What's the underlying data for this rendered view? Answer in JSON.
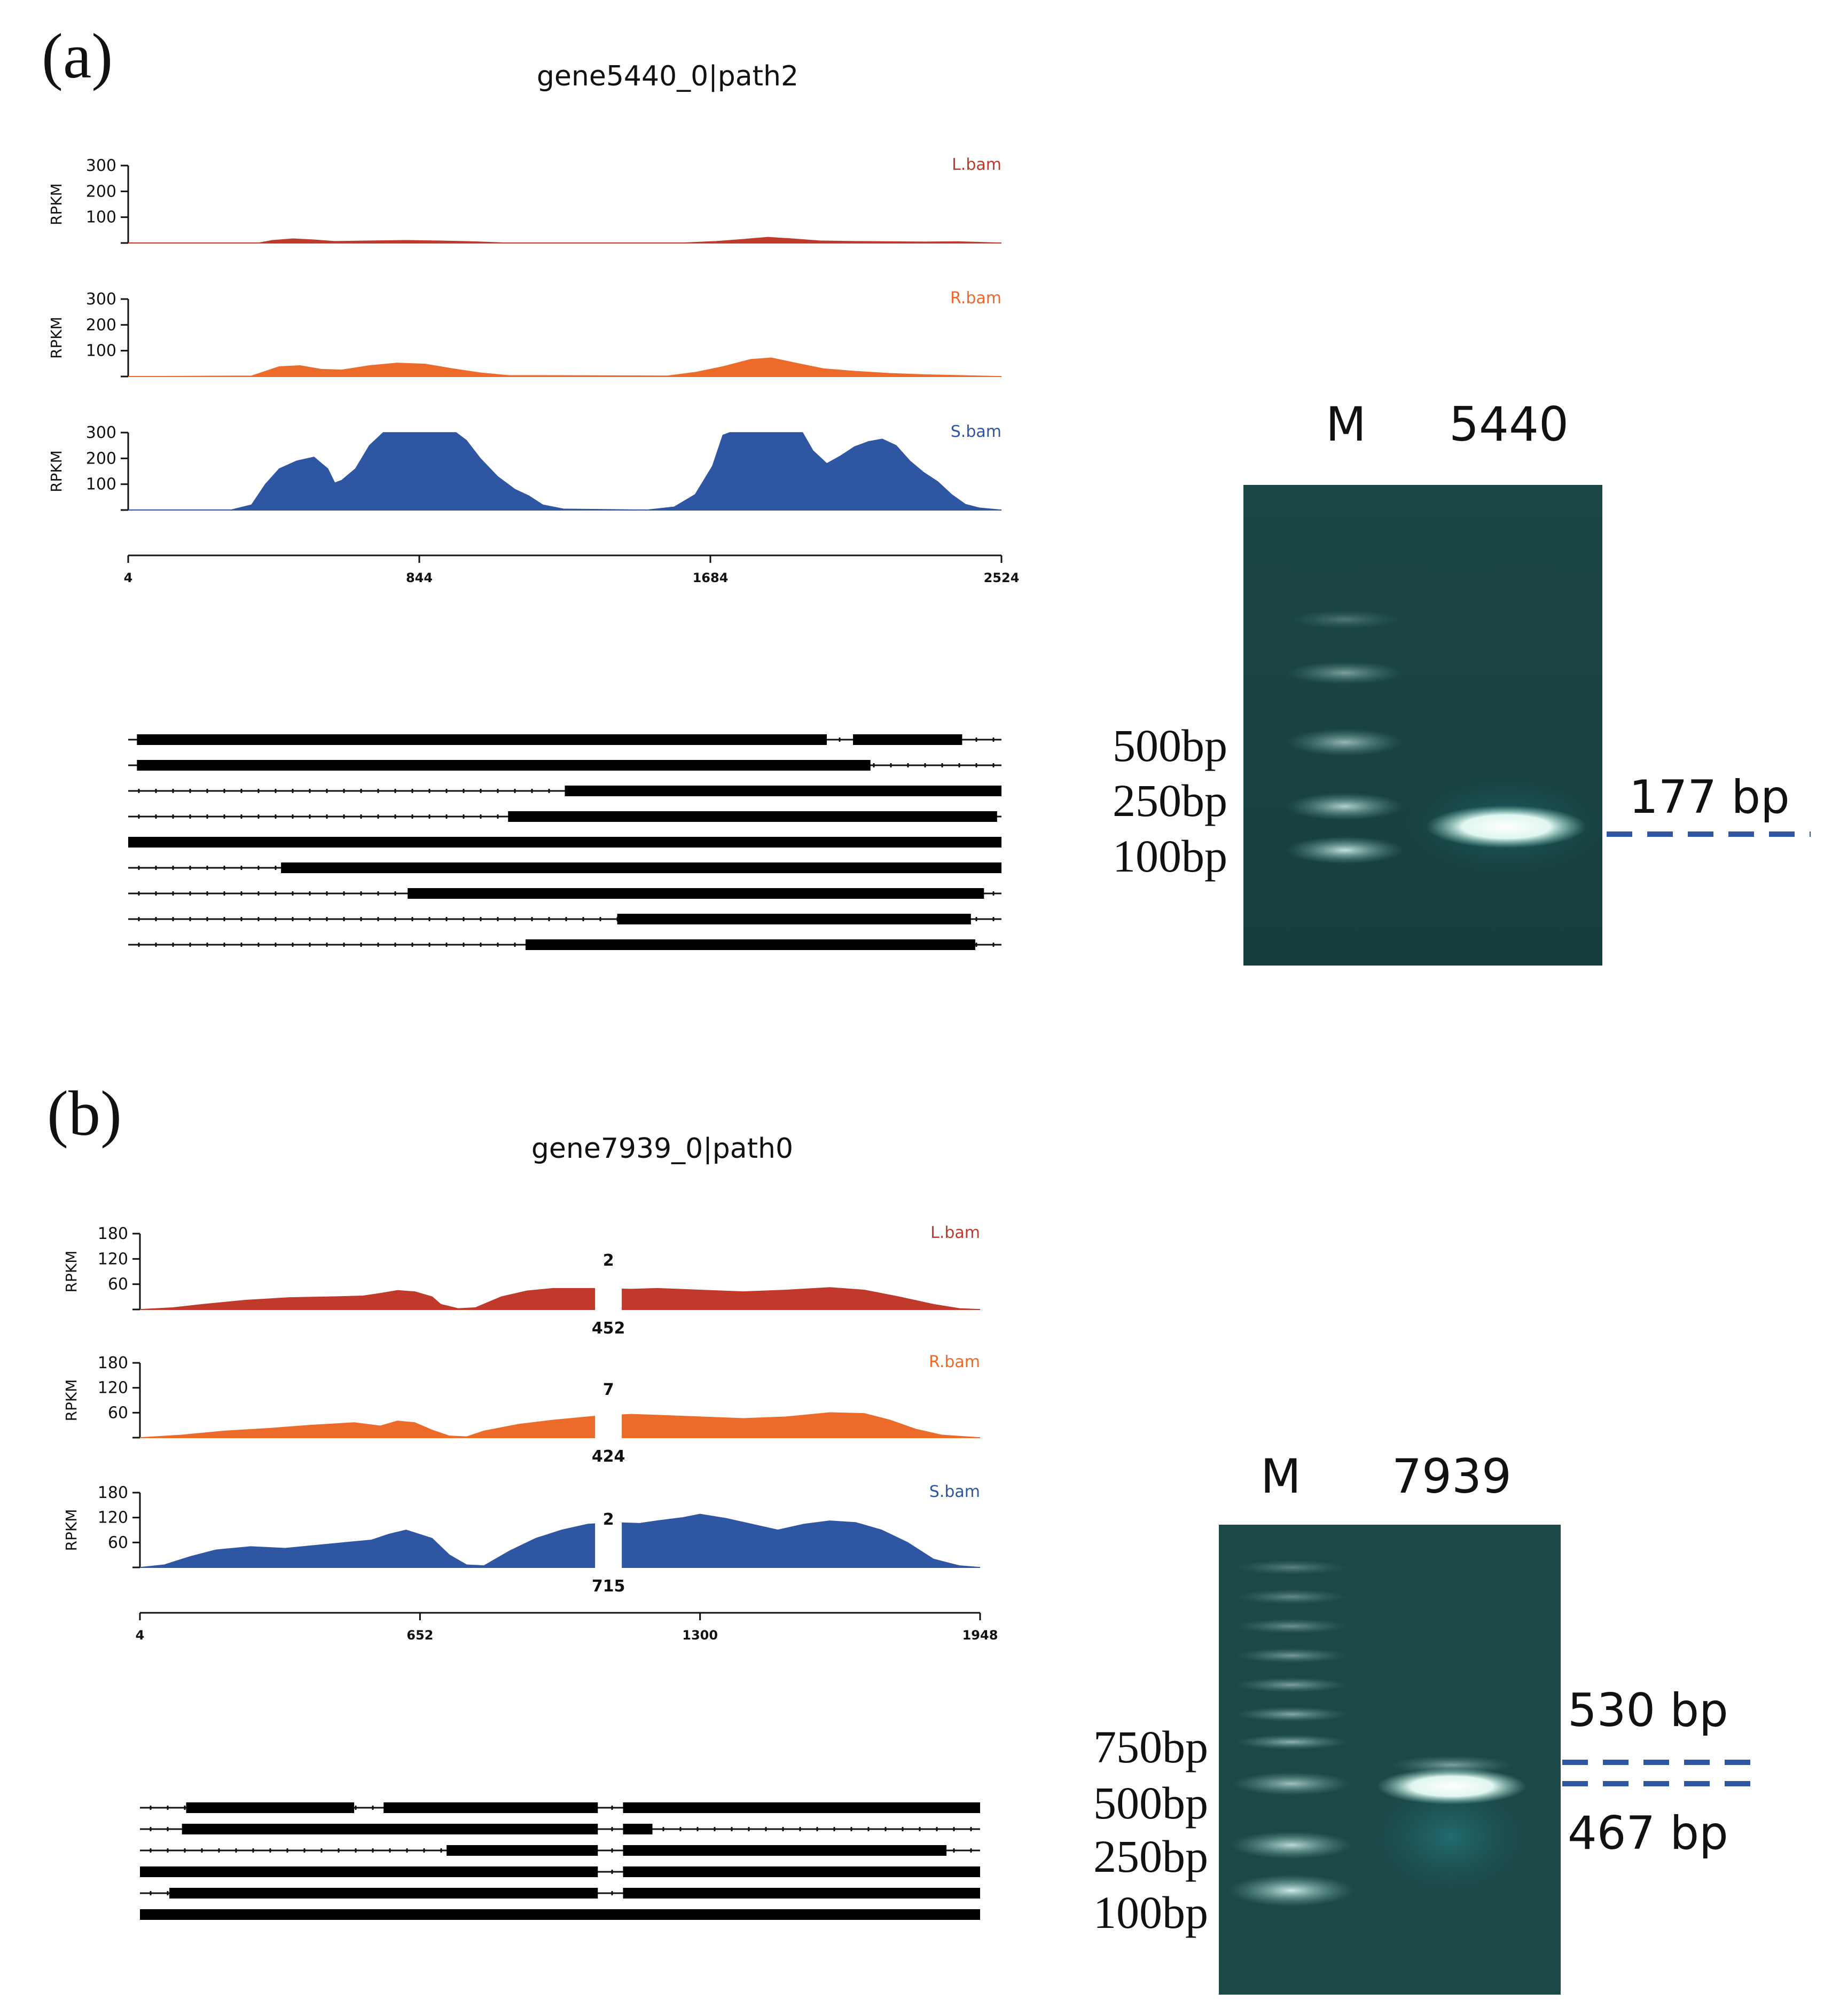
{
  "colors": {
    "L": "#c0392b",
    "R": "#ec6a2a",
    "S": "#2f56a3",
    "dash": "#2f56a3",
    "gel": "#143c3c"
  },
  "panels": [
    {
      "letter": "(a)",
      "title": "gene5440_0|path2",
      "ylabel": "RPKM",
      "x_ticks": [
        "4",
        "844",
        "1684",
        "2524"
      ],
      "x_range": [
        4,
        2524
      ],
      "tracks": [
        {
          "label": "L.bam",
          "color_key": "L",
          "y_max": 300,
          "y_ticks": [
            "300",
            "200",
            "100"
          ],
          "profile": [
            [
              4,
              0
            ],
            [
              380,
              0
            ],
            [
              420,
              10
            ],
            [
              480,
              16
            ],
            [
              540,
              12
            ],
            [
              600,
              6
            ],
            [
              700,
              8
            ],
            [
              800,
              10
            ],
            [
              900,
              8
            ],
            [
              1000,
              5
            ],
            [
              1100,
              0
            ],
            [
              1600,
              0
            ],
            [
              1700,
              6
            ],
            [
              1780,
              14
            ],
            [
              1850,
              22
            ],
            [
              1920,
              16
            ],
            [
              2000,
              8
            ],
            [
              2100,
              6
            ],
            [
              2200,
              5
            ],
            [
              2300,
              4
            ],
            [
              2400,
              5
            ],
            [
              2524,
              0
            ]
          ]
        },
        {
          "label": "R.bam",
          "color_key": "R",
          "y_max": 300,
          "y_ticks": [
            "300",
            "200",
            "100"
          ],
          "profile": [
            [
              4,
              0
            ],
            [
              360,
              2
            ],
            [
              400,
              20
            ],
            [
              440,
              38
            ],
            [
              500,
              42
            ],
            [
              560,
              28
            ],
            [
              620,
              25
            ],
            [
              700,
              42
            ],
            [
              780,
              52
            ],
            [
              860,
              48
            ],
            [
              940,
              30
            ],
            [
              1020,
              14
            ],
            [
              1100,
              4
            ],
            [
              1560,
              2
            ],
            [
              1640,
              16
            ],
            [
              1720,
              38
            ],
            [
              1800,
              66
            ],
            [
              1860,
              72
            ],
            [
              1930,
              52
            ],
            [
              2010,
              30
            ],
            [
              2100,
              20
            ],
            [
              2200,
              12
            ],
            [
              2300,
              7
            ],
            [
              2400,
              4
            ],
            [
              2524,
              0
            ]
          ]
        },
        {
          "label": "S.bam",
          "color_key": "S",
          "y_max": 300,
          "y_ticks": [
            "300",
            "200",
            "100"
          ],
          "profile": [
            [
              4,
              0
            ],
            [
              300,
              0
            ],
            [
              360,
              20
            ],
            [
              400,
              100
            ],
            [
              440,
              160
            ],
            [
              490,
              190
            ],
            [
              540,
              205
            ],
            [
              580,
              160
            ],
            [
              600,
              105
            ],
            [
              620,
              115
            ],
            [
              660,
              160
            ],
            [
              700,
              250
            ],
            [
              740,
              300
            ],
            [
              840,
              300
            ],
            [
              950,
              300
            ],
            [
              980,
              270
            ],
            [
              1020,
              200
            ],
            [
              1070,
              130
            ],
            [
              1120,
              80
            ],
            [
              1160,
              55
            ],
            [
              1200,
              20
            ],
            [
              1260,
              4
            ],
            [
              1500,
              0
            ],
            [
              1580,
              12
            ],
            [
              1640,
              60
            ],
            [
              1690,
              170
            ],
            [
              1720,
              290
            ],
            [
              1740,
              300
            ],
            [
              1950,
              300
            ],
            [
              1980,
              230
            ],
            [
              2020,
              180
            ],
            [
              2060,
              210
            ],
            [
              2100,
              245
            ],
            [
              2140,
              265
            ],
            [
              2180,
              275
            ],
            [
              2220,
              250
            ],
            [
              2260,
              190
            ],
            [
              2300,
              145
            ],
            [
              2340,
              110
            ],
            [
              2380,
              60
            ],
            [
              2420,
              22
            ],
            [
              2460,
              8
            ],
            [
              2524,
              0
            ]
          ]
        }
      ],
      "transcripts": [
        {
          "exons": [
            [
              0.01,
              0.8
            ],
            [
              0.83,
              0.955
            ]
          ],
          "line": [
            0.0,
            1.0
          ]
        },
        {
          "exons": [
            [
              0.01,
              0.85
            ]
          ],
          "line": [
            0.0,
            1.0
          ]
        },
        {
          "exons": [
            [
              0.5,
              1.0
            ]
          ],
          "line": [
            0.0,
            1.0
          ]
        },
        {
          "exons": [
            [
              0.435,
              0.995
            ]
          ],
          "line": [
            0.0,
            1.0
          ]
        },
        {
          "exons": [
            [
              0.0,
              1.0
            ]
          ],
          "line": [
            0.0,
            1.0
          ]
        },
        {
          "exons": [
            [
              0.175,
              1.0
            ]
          ],
          "line": [
            0.0,
            1.0
          ]
        },
        {
          "exons": [
            [
              0.32,
              0.98
            ]
          ],
          "line": [
            0.0,
            1.0
          ]
        },
        {
          "exons": [
            [
              0.56,
              0.965
            ]
          ],
          "line": [
            0.0,
            1.0
          ]
        },
        {
          "exons": [
            [
              0.455,
              0.97
            ]
          ],
          "line": [
            0.0,
            1.0
          ]
        }
      ],
      "gel": {
        "lane_labels": [
          "M",
          "5440"
        ],
        "marker_sizes": [
          "500bp",
          "250bp",
          "100bp"
        ],
        "band_labels": [
          "177 bp"
        ]
      }
    },
    {
      "letter": "(b)",
      "title": "gene7939_0|path0",
      "ylabel": "RPKM",
      "x_ticks": [
        "4",
        "652",
        "1300",
        "1948"
      ],
      "x_range": [
        4,
        1948
      ],
      "tracks": [
        {
          "label": "L.bam",
          "color_key": "L",
          "y_max": 180,
          "y_ticks": [
            "180",
            "120",
            "60"
          ],
          "junction_top": "2",
          "junction_bottom": "452",
          "profile": [
            [
              4,
              0
            ],
            [
              80,
              4
            ],
            [
              150,
              12
            ],
            [
              250,
              22
            ],
            [
              350,
              28
            ],
            [
              450,
              30
            ],
            [
              520,
              32
            ],
            [
              560,
              38
            ],
            [
              600,
              45
            ],
            [
              640,
              42
            ],
            [
              680,
              30
            ],
            [
              700,
              12
            ],
            [
              740,
              2
            ],
            [
              780,
              4
            ],
            [
              840,
              30
            ],
            [
              900,
              44
            ],
            [
              960,
              50
            ],
            [
              1060,
              50
            ],
            [
              1140,
              48
            ],
            [
              1200,
              50
            ],
            [
              1300,
              46
            ],
            [
              1400,
              42
            ],
            [
              1500,
              46
            ],
            [
              1600,
              52
            ],
            [
              1680,
              46
            ],
            [
              1760,
              30
            ],
            [
              1840,
              12
            ],
            [
              1900,
              2
            ],
            [
              1948,
              0
            ]
          ]
        },
        {
          "label": "R.bam",
          "color_key": "R",
          "y_max": 180,
          "y_ticks": [
            "180",
            "120",
            "60"
          ],
          "junction_top": "7",
          "junction_bottom": "424",
          "profile": [
            [
              4,
              0
            ],
            [
              100,
              6
            ],
            [
              200,
              16
            ],
            [
              300,
              22
            ],
            [
              400,
              30
            ],
            [
              500,
              36
            ],
            [
              560,
              28
            ],
            [
              600,
              40
            ],
            [
              640,
              36
            ],
            [
              680,
              18
            ],
            [
              720,
              4
            ],
            [
              760,
              2
            ],
            [
              800,
              16
            ],
            [
              880,
              32
            ],
            [
              960,
              42
            ],
            [
              1060,
              52
            ],
            [
              1140,
              56
            ],
            [
              1200,
              54
            ],
            [
              1300,
              50
            ],
            [
              1400,
              46
            ],
            [
              1500,
              50
            ],
            [
              1600,
              60
            ],
            [
              1680,
              58
            ],
            [
              1740,
              42
            ],
            [
              1800,
              20
            ],
            [
              1860,
              6
            ],
            [
              1948,
              0
            ]
          ]
        },
        {
          "label": "S.bam",
          "color_key": "S",
          "y_max": 180,
          "y_ticks": [
            "180",
            "120",
            "60"
          ],
          "junction_top": "2",
          "junction_bottom": "715",
          "profile": [
            [
              4,
              0
            ],
            [
              60,
              6
            ],
            [
              120,
              26
            ],
            [
              180,
              42
            ],
            [
              260,
              50
            ],
            [
              340,
              46
            ],
            [
              420,
              54
            ],
            [
              480,
              60
            ],
            [
              540,
              66
            ],
            [
              580,
              80
            ],
            [
              620,
              90
            ],
            [
              680,
              70
            ],
            [
              720,
              30
            ],
            [
              760,
              6
            ],
            [
              800,
              4
            ],
            [
              860,
              40
            ],
            [
              920,
              70
            ],
            [
              980,
              90
            ],
            [
              1040,
              104
            ],
            [
              1100,
              108
            ],
            [
              1160,
              106
            ],
            [
              1200,
              112
            ],
            [
              1260,
              120
            ],
            [
              1300,
              128
            ],
            [
              1360,
              118
            ],
            [
              1420,
              104
            ],
            [
              1480,
              90
            ],
            [
              1540,
              104
            ],
            [
              1600,
              112
            ],
            [
              1660,
              108
            ],
            [
              1720,
              90
            ],
            [
              1780,
              60
            ],
            [
              1840,
              20
            ],
            [
              1900,
              4
            ],
            [
              1948,
              0
            ]
          ]
        }
      ],
      "transcripts": [
        {
          "exons": [
            [
              0.055,
              0.255
            ],
            [
              0.29,
              0.545
            ],
            [
              0.575,
              1.0
            ]
          ],
          "line": [
            0.0,
            1.0
          ]
        },
        {
          "exons": [
            [
              0.05,
              0.545
            ],
            [
              0.575,
              0.61
            ]
          ],
          "line": [
            0.0,
            1.0
          ]
        },
        {
          "exons": [
            [
              0.365,
              0.545
            ],
            [
              0.575,
              0.96
            ]
          ],
          "line": [
            0.0,
            1.0
          ]
        },
        {
          "exons": [
            [
              0.0,
              0.545
            ],
            [
              0.575,
              1.0
            ]
          ],
          "line": [
            0.0,
            1.0
          ]
        },
        {
          "exons": [
            [
              0.035,
              0.545
            ],
            [
              0.575,
              1.0
            ]
          ],
          "line": [
            0.0,
            1.0
          ]
        },
        {
          "exons": [
            [
              0.0,
              1.0
            ]
          ],
          "line": [
            0.0,
            1.0
          ]
        }
      ],
      "gel": {
        "lane_labels": [
          "M",
          "7939"
        ],
        "marker_sizes": [
          "750bp",
          "500bp",
          "250bp",
          "100bp"
        ],
        "band_labels": [
          "530 bp",
          "467 bp"
        ]
      }
    }
  ]
}
